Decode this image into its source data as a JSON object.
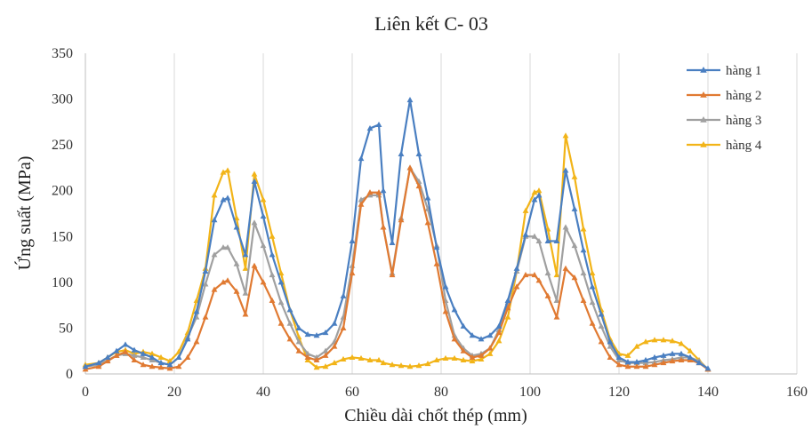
{
  "chart_data": {
    "type": "line",
    "title": "Liên kết C- 03",
    "xlabel": "Chiều dài chốt thép (mm)",
    "ylabel": "Ứng suất (MPa)",
    "xlim": [
      0,
      160
    ],
    "ylim": [
      0,
      350
    ],
    "xticks": [
      0,
      20,
      40,
      60,
      80,
      100,
      120,
      140,
      160
    ],
    "yticks": [
      0,
      50,
      100,
      150,
      200,
      250,
      300,
      350
    ],
    "grid": "vertical",
    "legend_position": "top-right",
    "x": [
      0,
      3,
      5,
      7,
      9,
      11,
      13,
      15,
      17,
      19,
      21,
      23,
      25,
      27,
      29,
      31,
      32,
      34,
      36,
      38,
      40,
      42,
      44,
      46,
      48,
      50,
      52,
      54,
      56,
      58,
      60,
      62,
      64,
      66,
      67,
      69,
      71,
      73,
      75,
      77,
      79,
      81,
      83,
      85,
      87,
      89,
      91,
      93,
      95,
      97,
      99,
      101,
      102,
      104,
      106,
      108,
      110,
      112,
      114,
      116,
      118,
      120,
      122,
      124,
      126,
      128,
      130,
      132,
      134,
      136,
      138,
      140
    ],
    "series": [
      {
        "name": "hàng 1",
        "color": "#4a7fc1",
        "marker": "triangle",
        "values": [
          8,
          12,
          18,
          25,
          32,
          26,
          22,
          18,
          12,
          10,
          18,
          38,
          68,
          112,
          168,
          190,
          192,
          160,
          130,
          210,
          172,
          130,
          100,
          70,
          50,
          43,
          42,
          45,
          55,
          85,
          145,
          235,
          268,
          272,
          200,
          143,
          240,
          299,
          240,
          192,
          138,
          95,
          70,
          52,
          42,
          38,
          42,
          52,
          80,
          115,
          152,
          190,
          195,
          145,
          145,
          222,
          180,
          135,
          95,
          65,
          35,
          18,
          13,
          13,
          15,
          18,
          20,
          22,
          22,
          18,
          12,
          6
        ]
      },
      {
        "name": "hàng 2",
        "color": "#e07a32",
        "marker": "triangle",
        "values": [
          5,
          8,
          14,
          20,
          24,
          15,
          10,
          8,
          7,
          6,
          8,
          18,
          35,
          62,
          92,
          100,
          102,
          90,
          65,
          118,
          100,
          80,
          55,
          38,
          25,
          18,
          15,
          20,
          30,
          50,
          110,
          185,
          198,
          198,
          160,
          108,
          168,
          225,
          205,
          165,
          120,
          68,
          38,
          25,
          18,
          20,
          28,
          45,
          72,
          95,
          108,
          108,
          102,
          85,
          62,
          115,
          105,
          80,
          55,
          35,
          18,
          10,
          8,
          8,
          8,
          10,
          12,
          14,
          15,
          15,
          12,
          5
        ]
      },
      {
        "name": "hàng 3",
        "color": "#a0a0a0",
        "marker": "triangle",
        "values": [
          8,
          10,
          15,
          20,
          22,
          20,
          18,
          15,
          12,
          10,
          18,
          40,
          62,
          98,
          130,
          138,
          138,
          120,
          88,
          165,
          140,
          108,
          78,
          55,
          35,
          22,
          18,
          25,
          35,
          62,
          118,
          190,
          195,
          195,
          160,
          110,
          170,
          225,
          210,
          180,
          140,
          80,
          42,
          28,
          20,
          22,
          28,
          48,
          78,
          112,
          150,
          150,
          145,
          110,
          80,
          160,
          140,
          110,
          78,
          52,
          30,
          15,
          12,
          12,
          12,
          13,
          15,
          16,
          18,
          18,
          14,
          5
        ]
      },
      {
        "name": "hàng 4",
        "color": "#f2b418",
        "marker": "triangle",
        "values": [
          10,
          12,
          18,
          24,
          26,
          22,
          24,
          22,
          18,
          14,
          24,
          45,
          80,
          115,
          195,
          220,
          222,
          170,
          115,
          218,
          190,
          150,
          110,
          70,
          40,
          15,
          7,
          8,
          12,
          16,
          18,
          17,
          15,
          15,
          12,
          10,
          9,
          8,
          9,
          11,
          15,
          17,
          17,
          15,
          14,
          16,
          22,
          36,
          62,
          112,
          178,
          198,
          200,
          158,
          108,
          260,
          215,
          158,
          110,
          70,
          38,
          22,
          20,
          30,
          35,
          37,
          37,
          36,
          33,
          25,
          15,
          5
        ]
      }
    ]
  }
}
